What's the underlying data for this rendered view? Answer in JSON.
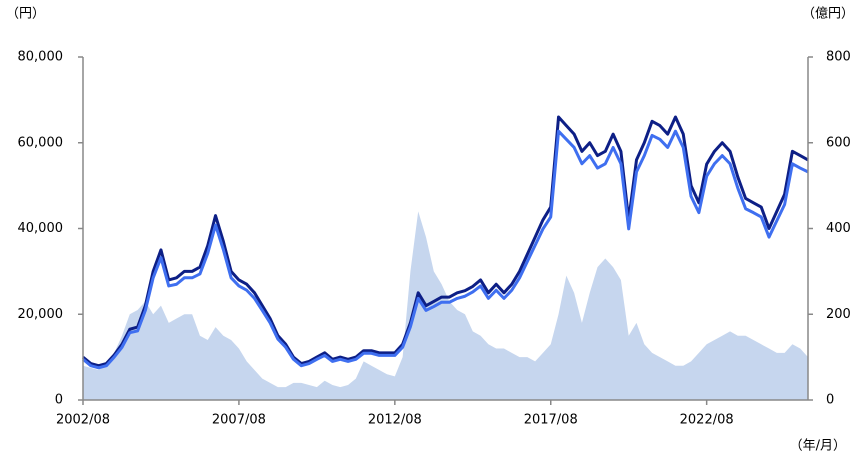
{
  "chart_data": {
    "type": "line",
    "y_unit_label": "（円）",
    "y2_unit_label": "（億円）",
    "x_unit_label": "（年/月）",
    "categories": [
      "2002/08",
      "2002/11",
      "2003/02",
      "2003/05",
      "2003/08",
      "2003/11",
      "2004/02",
      "2004/05",
      "2004/08",
      "2004/11",
      "2005/02",
      "2005/05",
      "2005/08",
      "2005/11",
      "2006/02",
      "2006/05",
      "2006/08",
      "2006/11",
      "2007/02",
      "2007/05",
      "2007/08",
      "2007/11",
      "2008/02",
      "2008/05",
      "2008/08",
      "2008/11",
      "2009/02",
      "2009/05",
      "2009/08",
      "2009/11",
      "2010/02",
      "2010/05",
      "2010/08",
      "2010/11",
      "2011/02",
      "2011/05",
      "2011/08",
      "2011/11",
      "2012/02",
      "2012/05",
      "2012/08",
      "2012/11",
      "2013/02",
      "2013/05",
      "2013/08",
      "2013/11",
      "2014/02",
      "2014/05",
      "2014/08",
      "2014/11",
      "2015/02",
      "2015/05",
      "2015/08",
      "2015/11",
      "2016/02",
      "2016/05",
      "2016/08",
      "2016/11",
      "2017/02",
      "2017/05",
      "2017/08",
      "2017/11",
      "2018/02",
      "2018/05",
      "2018/08",
      "2018/11",
      "2019/02",
      "2019/05",
      "2019/08",
      "2019/11",
      "2020/02",
      "2020/05",
      "2020/08",
      "2020/11",
      "2021/02",
      "2021/05",
      "2021/08",
      "2021/11",
      "2022/02",
      "2022/05",
      "2022/08",
      "2022/11",
      "2023/02",
      "2023/05",
      "2023/08",
      "2023/11",
      "2024/02",
      "2024/05",
      "2024/08",
      "2024/11",
      "2025/02",
      "2025/05",
      "2025/08",
      "2025/11"
    ],
    "xticks": [
      "2002/08",
      "2007/08",
      "2012/08",
      "2017/08",
      "2022/08"
    ],
    "series": [
      {
        "type": "area",
        "axis": "y2",
        "color": "#c6d6ee",
        "values": [
          80,
          75,
          70,
          90,
          110,
          150,
          200,
          210,
          230,
          200,
          220,
          180,
          190,
          200,
          200,
          150,
          140,
          170,
          150,
          140,
          120,
          90,
          70,
          50,
          40,
          30,
          30,
          40,
          40,
          35,
          30,
          45,
          35,
          30,
          35,
          50,
          90,
          80,
          70,
          60,
          55,
          100,
          300,
          440,
          380,
          300,
          270,
          230,
          210,
          200,
          160,
          150,
          130,
          120,
          120,
          110,
          100,
          100,
          90,
          110,
          130,
          200,
          290,
          250,
          180,
          250,
          310,
          330,
          310,
          280,
          150,
          180,
          130,
          110,
          100,
          90,
          80,
          80,
          90,
          110,
          130,
          140,
          150,
          160,
          150,
          150,
          140,
          130,
          120,
          110,
          110,
          130,
          120,
          100
        ]
      },
      {
        "type": "line",
        "color": "#0d1f86",
        "values": [
          10000,
          8500,
          8000,
          8500,
          10500,
          13000,
          16500,
          17000,
          22000,
          30000,
          35000,
          28000,
          28500,
          30000,
          30000,
          31000,
          36000,
          43000,
          37000,
          30000,
          28000,
          27000,
          25000,
          22000,
          19000,
          15000,
          13000,
          10000,
          8500,
          9000,
          10000,
          11000,
          9500,
          10000,
          9500,
          10000,
          11500,
          11500,
          11000,
          11000,
          11000,
          13000,
          18000,
          25000,
          22000,
          23000,
          24000,
          24000,
          25000,
          25500,
          26500,
          28000,
          25000,
          27000,
          25000,
          27000,
          30000,
          34000,
          38000,
          42000,
          45000,
          66000,
          64000,
          62000,
          58000,
          60000,
          57000,
          58000,
          62000,
          58000,
          42000,
          56000,
          60000,
          65000,
          64000,
          62000,
          66000,
          62000,
          50000,
          46000,
          55000,
          58000,
          60000,
          58000,
          52000,
          47000,
          46000,
          45000,
          40000,
          44000,
          48000,
          58000,
          57000,
          56000
        ]
      },
      {
        "type": "line",
        "color": "#3f6ff0",
        "values": [
          9500,
          8000,
          7500,
          8000,
          10000,
          12300,
          15700,
          16100,
          20900,
          28500,
          33200,
          26600,
          27000,
          28500,
          28500,
          29400,
          34200,
          40800,
          35100,
          28500,
          26600,
          25600,
          23700,
          20900,
          18000,
          14200,
          12300,
          9500,
          8000,
          8500,
          9500,
          10400,
          9000,
          9500,
          9000,
          9500,
          10900,
          10900,
          10400,
          10400,
          10400,
          12300,
          17100,
          23700,
          20900,
          21800,
          22800,
          22800,
          23700,
          24200,
          25200,
          26600,
          23700,
          25600,
          23700,
          25600,
          28500,
          32300,
          36100,
          39900,
          42700,
          62700,
          60800,
          58900,
          55100,
          57000,
          54100,
          55100,
          58900,
          55100,
          39900,
          53200,
          57000,
          61700,
          60800,
          58900,
          62700,
          58900,
          47500,
          43700,
          52200,
          55100,
          57000,
          55100,
          49400,
          44600,
          43700,
          42700,
          38000,
          41800,
          45600,
          55100,
          54100,
          53200
        ]
      }
    ],
    "ylim": [
      0,
      80000
    ],
    "yticks": [
      0,
      {
        "value": 20000,
        "label": "20,000"
      },
      {
        "value": 40000,
        "label": "40,000"
      },
      {
        "value": 60000,
        "label": "60,000"
      },
      {
        "value": 80000,
        "label": "80,000"
      }
    ],
    "y2lim": [
      0,
      800
    ],
    "y2ticks": [
      0,
      200,
      400,
      600,
      800
    ]
  }
}
